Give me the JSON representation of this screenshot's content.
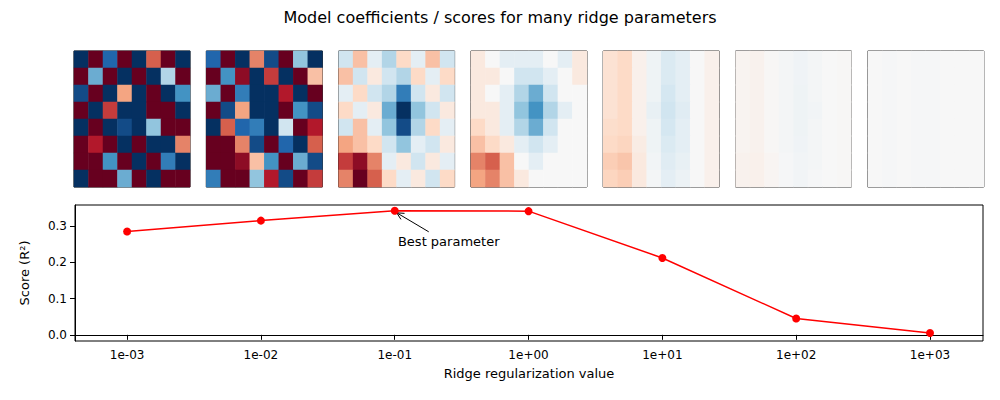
{
  "title": "Model coefficients / scores for many ridge parameters",
  "chart_data": [
    {
      "type": "heatmap",
      "color_range": [
        -1,
        1
      ],
      "panels": [
        [
          [
            1,
            -1,
            0.8,
            -1,
            1,
            -0.6,
            -1,
            1
          ],
          [
            -1,
            0.5,
            -1,
            1,
            -1,
            1,
            0.3,
            -1
          ],
          [
            0.9,
            -1,
            1,
            -0.4,
            1,
            -1,
            1,
            0.6
          ],
          [
            -1,
            1,
            -0.7,
            1,
            1,
            -1,
            -1,
            1
          ],
          [
            1,
            -1,
            1,
            0.9,
            1,
            0.4,
            -1,
            -1
          ],
          [
            -1,
            -0.8,
            -1,
            1,
            -1,
            1,
            1,
            -0.5
          ],
          [
            -1,
            -1,
            0.6,
            -1,
            1,
            -1,
            0.7,
            1
          ],
          [
            1,
            -1,
            -1,
            0.5,
            -1,
            1,
            -1,
            -1
          ]
        ],
        [
          [
            0.8,
            -1,
            1,
            -0.5,
            0.9,
            -1,
            0.4,
            1
          ],
          [
            -1,
            0.6,
            -0.9,
            1,
            -0.7,
            1,
            -1,
            -0.3
          ],
          [
            0.5,
            -1,
            0.7,
            1,
            1,
            -0.8,
            1,
            -1
          ],
          [
            -1,
            0.9,
            -0.4,
            1,
            1,
            -1,
            0.6,
            0.9
          ],
          [
            1,
            -0.6,
            0.8,
            0.7,
            1,
            0.2,
            -1,
            -0.8
          ],
          [
            -1,
            -1,
            -0.5,
            0.9,
            -1,
            0.8,
            1,
            -0.6
          ],
          [
            -1,
            -1,
            -0.9,
            -0.3,
            0.6,
            -1,
            0.5,
            0.9
          ],
          [
            0.7,
            -1,
            -1,
            0.4,
            -0.8,
            0.9,
            -1,
            -0.7
          ]
        ],
        [
          [
            0.2,
            -0.3,
            0.1,
            0.3,
            -0.2,
            0.1,
            -0.3,
            0.2
          ],
          [
            -0.3,
            0.2,
            -0.1,
            0.2,
            0.3,
            -0.2,
            0.1,
            -0.2
          ],
          [
            0.1,
            -0.2,
            0.2,
            0.3,
            0.7,
            0.2,
            -0.1,
            0.2
          ],
          [
            -0.2,
            0.1,
            -0.1,
            0.5,
            1,
            0.4,
            0.2,
            -0.1
          ],
          [
            0.2,
            -0.3,
            0.1,
            0.4,
            0.9,
            0.3,
            -0.2,
            0.1
          ],
          [
            -0.4,
            -0.3,
            -0.2,
            0.2,
            0.4,
            0.1,
            0.2,
            -0.1
          ],
          [
            -0.7,
            -0.9,
            -0.5,
            0.1,
            -0.1,
            0.2,
            -0.1,
            0.1
          ],
          [
            -0.5,
            -1,
            -0.6,
            -0.2,
            0.1,
            -0.1,
            0.2,
            -0.2
          ]
        ],
        [
          [
            -0.1,
            0,
            0.1,
            0.1,
            0.1,
            0,
            0.1,
            -0.1
          ],
          [
            -0.1,
            -0.1,
            0,
            0.2,
            0.2,
            0.1,
            0,
            -0.1
          ],
          [
            -0.1,
            0,
            0.1,
            0.3,
            0.5,
            0.2,
            0,
            0
          ],
          [
            -0.1,
            -0.1,
            0.1,
            0.4,
            0.6,
            0.3,
            0.1,
            0
          ],
          [
            -0.2,
            -0.1,
            0.1,
            0.3,
            0.5,
            0.2,
            0,
            0
          ],
          [
            -0.3,
            -0.2,
            -0.1,
            0.1,
            0.2,
            0.1,
            0,
            0
          ],
          [
            -0.5,
            -0.6,
            -0.3,
            0,
            0.1,
            0,
            0,
            0
          ],
          [
            -0.4,
            -0.5,
            -0.3,
            -0.1,
            0,
            0,
            0,
            0
          ]
        ],
        [
          [
            -0.15,
            -0.2,
            -0.05,
            0.05,
            0.15,
            0.1,
            0,
            -0.05
          ],
          [
            -0.15,
            -0.2,
            -0.05,
            0.05,
            0.15,
            0.1,
            0,
            -0.05
          ],
          [
            -0.15,
            -0.2,
            -0.05,
            0.05,
            0.18,
            0.1,
            0,
            -0.05
          ],
          [
            -0.15,
            -0.2,
            -0.05,
            0.08,
            0.2,
            0.12,
            0,
            -0.05
          ],
          [
            -0.18,
            -0.2,
            -0.05,
            0.05,
            0.18,
            0.1,
            0,
            -0.05
          ],
          [
            -0.2,
            -0.22,
            -0.08,
            0.05,
            0.15,
            0.1,
            0,
            -0.05
          ],
          [
            -0.25,
            -0.28,
            -0.1,
            0.03,
            0.12,
            0.08,
            0,
            -0.05
          ],
          [
            -0.22,
            -0.25,
            -0.1,
            0.02,
            0.1,
            0.06,
            0,
            -0.05
          ]
        ],
        [
          [
            -0.03,
            -0.04,
            -0.01,
            0.02,
            0.04,
            0.02,
            0,
            -0.01
          ],
          [
            -0.03,
            -0.04,
            -0.01,
            0.02,
            0.04,
            0.02,
            0,
            -0.01
          ],
          [
            -0.03,
            -0.04,
            -0.01,
            0.02,
            0.05,
            0.02,
            0,
            -0.01
          ],
          [
            -0.03,
            -0.04,
            -0.01,
            0.02,
            0.05,
            0.03,
            0,
            -0.01
          ],
          [
            -0.03,
            -0.04,
            -0.01,
            0.02,
            0.05,
            0.02,
            0,
            -0.01
          ],
          [
            -0.03,
            -0.04,
            -0.01,
            0.02,
            0.04,
            0.02,
            0,
            -0.01
          ],
          [
            -0.04,
            -0.05,
            -0.02,
            0.01,
            0.03,
            0.02,
            0,
            -0.01
          ],
          [
            -0.04,
            -0.05,
            -0.02,
            0.01,
            0.03,
            0.01,
            0,
            -0.01
          ]
        ],
        [
          [
            0,
            0.01,
            0,
            0.01,
            0.01,
            0,
            0,
            0
          ],
          [
            0,
            0.01,
            0,
            0.01,
            0.01,
            0,
            0,
            0
          ],
          [
            0,
            0.01,
            0,
            0.01,
            0.01,
            0,
            0,
            0
          ],
          [
            0,
            0.01,
            0,
            0.01,
            0.01,
            0,
            0,
            0
          ],
          [
            0,
            0.01,
            0,
            0.01,
            0.01,
            0,
            0,
            0
          ],
          [
            0,
            0.01,
            0,
            0.01,
            0.01,
            0,
            0,
            0
          ],
          [
            0,
            0.01,
            0,
            0.01,
            0.01,
            0,
            0,
            0
          ],
          [
            0,
            0.01,
            0,
            0.01,
            0.01,
            0,
            0,
            0
          ]
        ]
      ]
    },
    {
      "type": "line",
      "log": "x",
      "grid": false,
      "color": "#ff0000",
      "marker": "circle",
      "x": [
        0.001,
        0.01,
        0.1,
        1,
        10,
        100,
        1000
      ],
      "values": [
        0.285,
        0.315,
        0.342,
        0.341,
        0.212,
        0.045,
        0.005
      ],
      "xlim": [
        0.000408,
        2490
      ],
      "ylim": [
        -0.017,
        0.358
      ],
      "xticks": [
        {
          "value": 0.001,
          "label": "1e-03"
        },
        {
          "value": 0.01,
          "label": "1e-02"
        },
        {
          "value": 0.1,
          "label": "1e-01"
        },
        {
          "value": 1,
          "label": "1e+00"
        },
        {
          "value": 10,
          "label": "1e+01"
        },
        {
          "value": 100,
          "label": "1e+02"
        },
        {
          "value": 1000,
          "label": "1e+03"
        }
      ],
      "yticks": [
        {
          "value": 0,
          "label": "0.0"
        },
        {
          "value": 0.1,
          "label": "0.1"
        },
        {
          "value": 0.2,
          "label": "0.2"
        },
        {
          "value": 0.3,
          "label": "0.3"
        }
      ],
      "xlabel": "Ridge regularization value",
      "ylabel": "Score (R²)",
      "annotations": [
        {
          "text": "Best parameter",
          "x": 0.1,
          "y": 0.342
        }
      ]
    }
  ]
}
